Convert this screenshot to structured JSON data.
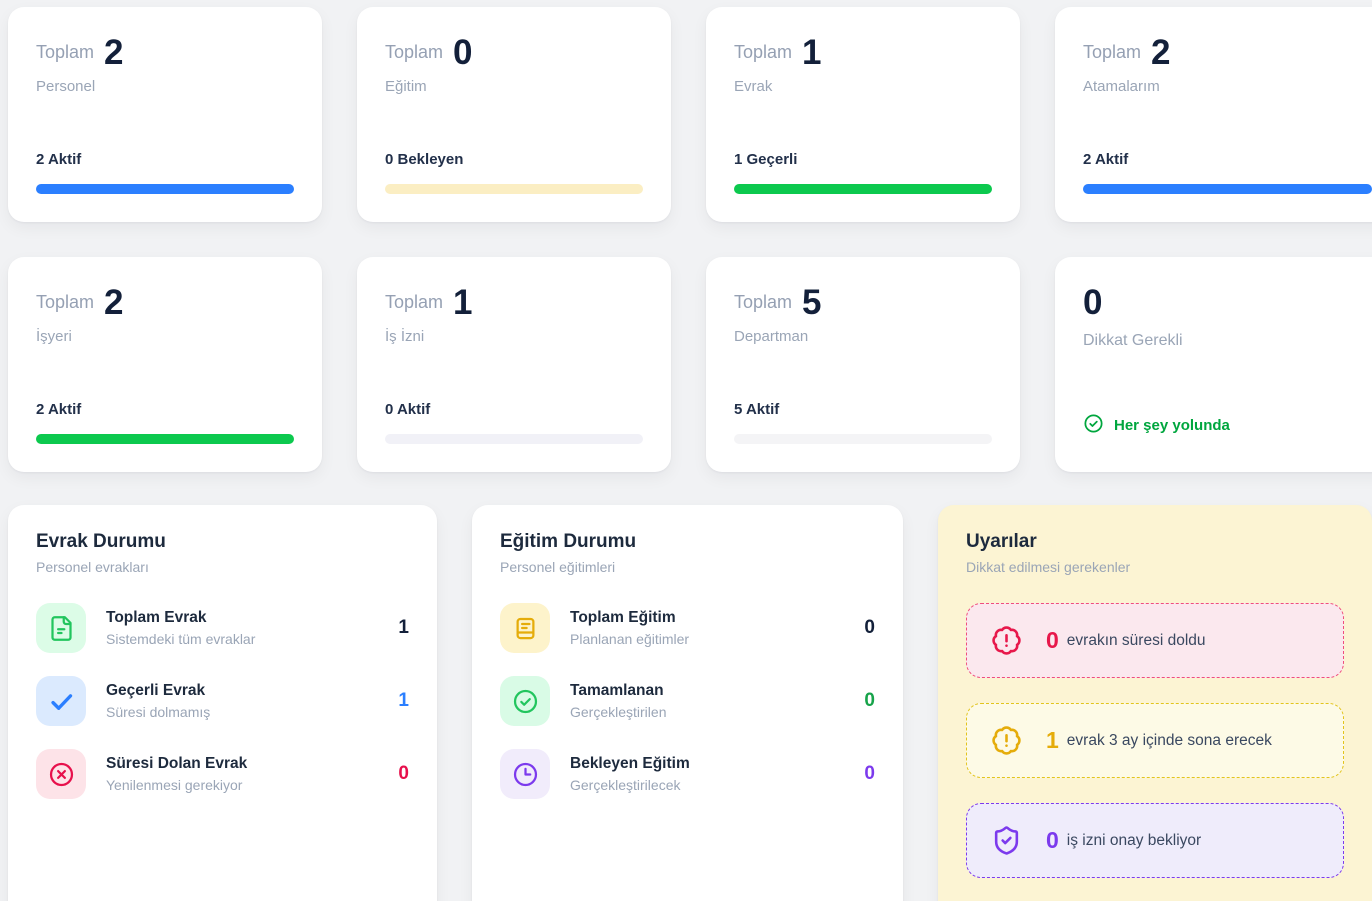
{
  "page": {
    "background": "#f1f2f4"
  },
  "stat_cards": [
    {
      "prefix": "Toplam",
      "value": "2",
      "label": "Personel",
      "footer": "2 Aktif",
      "bar_color": "#2b7fff"
    },
    {
      "prefix": "Toplam",
      "value": "0",
      "label": "Eğitim",
      "footer": "0 Bekleyen",
      "bar_color": "#fbeec3"
    },
    {
      "prefix": "Toplam",
      "value": "1",
      "label": "Evrak",
      "footer": "1 Geçerli",
      "bar_color": "#0cc94e"
    },
    {
      "prefix": "Toplam",
      "value": "2",
      "label": "Atamalarım",
      "footer": "2 Aktif",
      "bar_color": "#2b7fff"
    },
    {
      "prefix": "Toplam",
      "value": "2",
      "label": "İşyeri",
      "footer": "2 Aktif",
      "bar_color": "#0cc94e"
    },
    {
      "prefix": "Toplam",
      "value": "1",
      "label": "İş İzni",
      "footer": "0 Aktif",
      "bar_color": "#f1f1f7"
    },
    {
      "prefix": "Toplam",
      "value": "5",
      "label": "Departman",
      "footer": "5 Aktif",
      "bar_color": "#f4f4f6"
    }
  ],
  "attention_card": {
    "value": "0",
    "label": "Dikkat Gerekli",
    "status_text": "Her şey yolunda",
    "status_color": "#00a63e",
    "status_icon": "circle-check"
  },
  "document_panel": {
    "title": "Evrak Durumu",
    "subtitle": "Personel evrakları",
    "items": [
      {
        "icon": "file-text",
        "icon_color": "#22c55e",
        "icon_bg": "#dcfce7",
        "title": "Toplam Evrak",
        "subtitle": "Sistemdeki tüm evraklar",
        "value": "1",
        "value_color": "#13203a"
      },
      {
        "icon": "check",
        "icon_color": "#2b7fff",
        "icon_bg": "#dbeafe",
        "title": "Geçerli Evrak",
        "subtitle": "Süresi dolmamış",
        "value": "1",
        "value_color": "#2b7fff"
      },
      {
        "icon": "circle-x",
        "icon_color": "#e7104c",
        "icon_bg": "#fde3e8",
        "title": "Süresi Dolan Evrak",
        "subtitle": "Yenilenmesi gerekiyor",
        "value": "0",
        "value_color": "#e7104c"
      }
    ]
  },
  "training_panel": {
    "title": "Eğitim Durumu",
    "subtitle": "Personel eğitimleri",
    "items": [
      {
        "icon": "notebook",
        "icon_color": "#e5ac0a",
        "icon_bg": "#fdf3cb",
        "title": "Toplam Eğitim",
        "subtitle": "Planlanan eğitimler",
        "value": "0",
        "value_color": "#13203a"
      },
      {
        "icon": "circle-check",
        "icon_color": "#22c55e",
        "icon_bg": "#d9fbe6",
        "title": "Tamamlanan",
        "subtitle": "Gerçekleştirilen",
        "value": "0",
        "value_color": "#17a34a"
      },
      {
        "icon": "clock",
        "icon_color": "#7c3aed",
        "icon_bg": "#f1ecfb",
        "title": "Bekleyen Eğitim",
        "subtitle": "Gerçekleştirilecek",
        "value": "0",
        "value_color": "#7c3aed"
      }
    ]
  },
  "alerts_panel": {
    "title": "Uyarılar",
    "subtitle": "Dikkat edilmesi gerekenler",
    "background": "#fcf4d3",
    "alerts": [
      {
        "icon": "badge-alert",
        "count": "0",
        "text": "evrakın süresi doldu",
        "count_color": "#e7184b",
        "icon_color": "#e7184b",
        "border_color": "#ef4d7e",
        "background": "#fbe8ee"
      },
      {
        "icon": "badge-alert",
        "count": "1",
        "text": "evrak 3 ay içinde sona erecek",
        "count_color": "#e5ac0a",
        "icon_color": "#e5ac0a",
        "border_color": "#e2c41d",
        "background": "#fdfae6"
      },
      {
        "icon": "shield-check",
        "count": "0",
        "text": "iş izni onay bekliyor",
        "count_color": "#7c3aed",
        "icon_color": "#7c3aed",
        "border_color": "#7c3aed",
        "background": "#efecfb"
      }
    ]
  }
}
